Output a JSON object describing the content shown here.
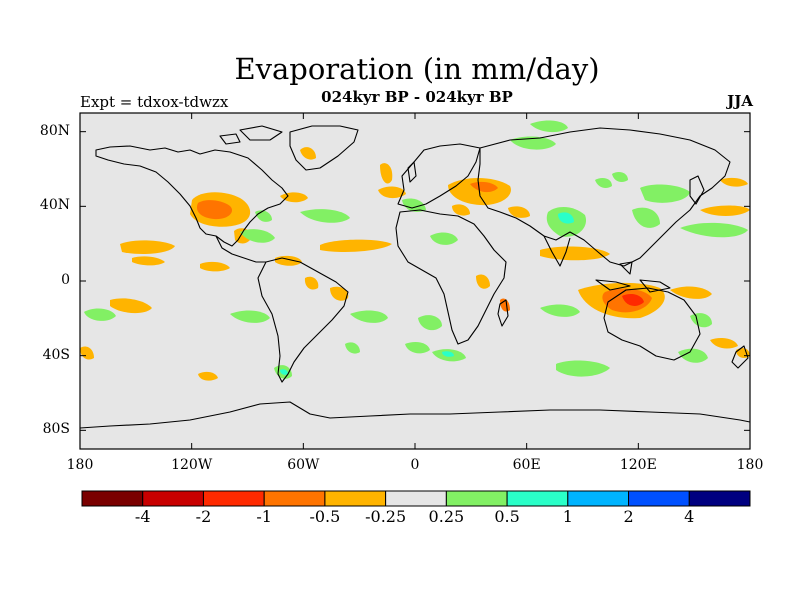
{
  "header": {
    "title": "Evaporation (in mm/day)",
    "subtitle": "024kyr BP - 024kyr BP",
    "left_label": "Expt = tdxox-tdwzx",
    "right_label": "JJA"
  },
  "axes": {
    "lat_ticks": [
      {
        "value": 80,
        "label": "80N"
      },
      {
        "value": 40,
        "label": "40N"
      },
      {
        "value": 0,
        "label": "0"
      },
      {
        "value": -40,
        "label": "40S"
      },
      {
        "value": -80,
        "label": "80S"
      }
    ],
    "lon_ticks": [
      {
        "value": -180,
        "label": "180"
      },
      {
        "value": -120,
        "label": "120W"
      },
      {
        "value": -60,
        "label": "60W"
      },
      {
        "value": 0,
        "label": "0"
      },
      {
        "value": 60,
        "label": "60E"
      },
      {
        "value": 120,
        "label": "120E"
      },
      {
        "value": 180,
        "label": "180"
      }
    ]
  },
  "colorbar": {
    "colors": [
      "#7a0000",
      "#c80000",
      "#ff2a00",
      "#ff7400",
      "#ffb400",
      "#e6e6e6",
      "#82f064",
      "#2affc8",
      "#00b4ff",
      "#0050ff",
      "#000080"
    ],
    "labels": [
      "-4",
      "-2",
      "-1",
      "-0.5",
      "-0.25",
      "0.25",
      "0.5",
      "1",
      "2",
      "4"
    ]
  },
  "colors": {
    "background": "#e6e6e6",
    "neg_small": "#ffb400",
    "neg_mid": "#ff7400",
    "neg_large": "#ff2a00",
    "pos_small": "#82f064",
    "pos_mid": "#2affc8",
    "pos_large": "#00b4ff"
  }
}
